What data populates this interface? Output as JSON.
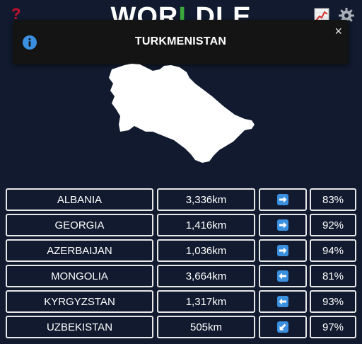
{
  "header": {
    "help_icon": "question-mark-icon",
    "logo_part1": "WOR",
    "logo_part2": "L",
    "logo_part3": "DLE",
    "stats_icon": "chart-icon",
    "settings_icon": "gear-icon"
  },
  "toast": {
    "icon": "info-icon",
    "message": "TURKMENISTAN",
    "close_label": "×"
  },
  "colors": {
    "background": "#111a2e",
    "arrow_blue": "#3a8fdf",
    "help_red": "#c8102e",
    "logo_green": "#3ba83b"
  },
  "guesses": [
    {
      "country": "ALBANIA",
      "distance": "3,336km",
      "direction": "east",
      "percent": "83%"
    },
    {
      "country": "GEORGIA",
      "distance": "1,416km",
      "direction": "east",
      "percent": "92%"
    },
    {
      "country": "AZERBAIJAN",
      "distance": "1,036km",
      "direction": "east",
      "percent": "94%"
    },
    {
      "country": "MONGOLIA",
      "distance": "3,664km",
      "direction": "west",
      "percent": "81%"
    },
    {
      "country": "KYRGYZSTAN",
      "distance": "1,317km",
      "direction": "west",
      "percent": "93%"
    },
    {
      "country": "UZBEKISTAN",
      "distance": "505km",
      "direction": "southwest",
      "percent": "97%"
    }
  ]
}
